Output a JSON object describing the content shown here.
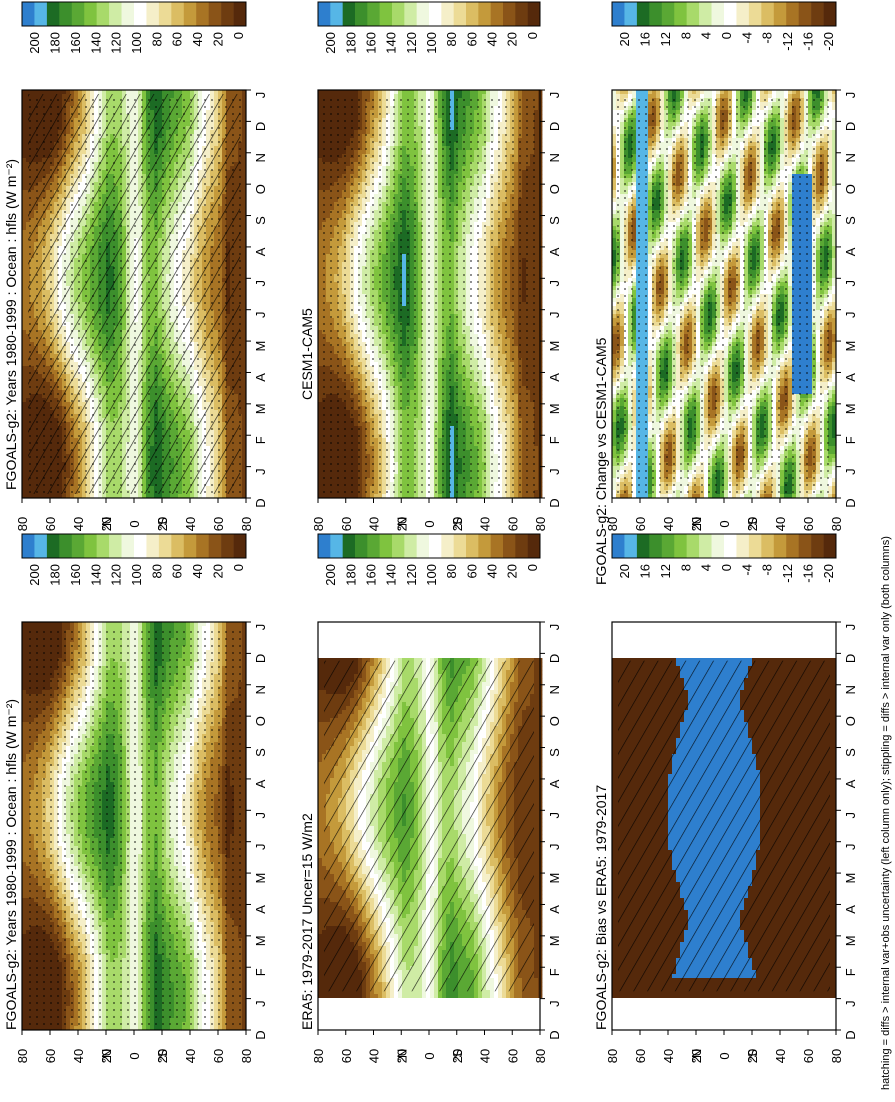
{
  "footnote": "hatching = diffs > internal var+obs uncertainty (left column only); stippling = diffs > internal var only (both columns)",
  "chart_data": [
    {
      "id": "p_fgoals_ocean",
      "type": "heatmap",
      "title": "FGOALS-g2: Years 1980-1999 : Ocean : hfls (W m⁻²)",
      "x_ticks": [
        "D",
        "J",
        "F",
        "M",
        "A",
        "M",
        "J",
        "J",
        "A",
        "S",
        "O",
        "N",
        "D",
        "J"
      ],
      "y_ticks": [
        "80",
        "60",
        "40",
        "20",
        "0",
        "20",
        "40",
        "60",
        "80"
      ],
      "y_hemis": [
        "°N",
        "°S"
      ],
      "colorbar": {
        "labels": [
          "200",
          "180",
          "160",
          "140",
          "120",
          "100",
          "80",
          "60",
          "40",
          "20",
          "0"
        ],
        "colors": [
          "#2e7fce",
          "#56b6e6",
          "#1c6b24",
          "#3c8f2c",
          "#5aa834",
          "#7fc33f",
          "#a8da6a",
          "#cfeca5",
          "#eff8df",
          "#ffffff",
          "#f5efc9",
          "#ecdb96",
          "#dbbd63",
          "#c49a3b",
          "#a87424",
          "#8a5418",
          "#6e3c10",
          "#55290b"
        ]
      },
      "pattern": "hatch-both",
      "zonal": [
        [
          -90,
          4
        ],
        [
          -75,
          4
        ],
        [
          -70,
          38
        ],
        [
          -60,
          60
        ],
        [
          -50,
          88
        ],
        [
          -45,
          110
        ],
        [
          -35,
          126
        ],
        [
          -25,
          148
        ],
        [
          -18,
          170
        ],
        [
          -10,
          152
        ],
        [
          -4,
          110
        ],
        [
          0,
          96
        ],
        [
          5,
          120
        ],
        [
          12,
          150
        ],
        [
          20,
          160
        ],
        [
          30,
          130
        ],
        [
          40,
          96
        ],
        [
          50,
          70
        ],
        [
          60,
          36
        ],
        [
          70,
          12
        ],
        [
          80,
          4
        ],
        [
          90,
          4
        ]
      ],
      "seasonal": [
        [
          -90,
          0
        ],
        [
          -60,
          12
        ],
        [
          -40,
          16
        ],
        [
          -20,
          12
        ],
        [
          0,
          0
        ],
        [
          20,
          -12
        ],
        [
          40,
          -22
        ],
        [
          60,
          -26
        ],
        [
          90,
          -10
        ]
      ],
      "x_span": [
        0.0,
        1.0
      ]
    },
    {
      "id": "p_fgoals_obs",
      "type": "heatmap",
      "title": "FGOALS-g2: Years 1980-1999 : Ocean : hfls (W m⁻²)",
      "x_ticks": [
        "D",
        "J",
        "F",
        "M",
        "A",
        "M",
        "J",
        "J",
        "A",
        "S",
        "O",
        "N",
        "D",
        "J"
      ],
      "y_ticks": [
        "80",
        "60",
        "40",
        "20",
        "0",
        "20",
        "40",
        "60",
        "80"
      ],
      "y_hemis": [
        "°N",
        "°S"
      ],
      "colorbar": {
        "labels": [
          "200",
          "180",
          "160",
          "140",
          "120",
          "100",
          "80",
          "60",
          "40",
          "20",
          "0"
        ],
        "colors": [
          "#2e7fce",
          "#56b6e6",
          "#1c6b24",
          "#3c8f2c",
          "#5aa834",
          "#7fc33f",
          "#a8da6a",
          "#cfeca5",
          "#eff8df",
          "#ffffff",
          "#f5efc9",
          "#ecdb96",
          "#dbbd63",
          "#c49a3b",
          "#a87424",
          "#8a5418",
          "#6e3c10",
          "#55290b"
        ]
      },
      "pattern": "stipple",
      "zonal": [
        [
          -90,
          4
        ],
        [
          -75,
          4
        ],
        [
          -70,
          34
        ],
        [
          -60,
          58
        ],
        [
          -50,
          86
        ],
        [
          -45,
          112
        ],
        [
          -35,
          130
        ],
        [
          -25,
          150
        ],
        [
          -18,
          172
        ],
        [
          -10,
          150
        ],
        [
          -4,
          112
        ],
        [
          0,
          98
        ],
        [
          5,
          122
        ],
        [
          12,
          152
        ],
        [
          20,
          162
        ],
        [
          30,
          132
        ],
        [
          40,
          100
        ],
        [
          50,
          72
        ],
        [
          60,
          38
        ],
        [
          70,
          12
        ],
        [
          80,
          4
        ],
        [
          90,
          4
        ]
      ],
      "seasonal": [
        [
          -90,
          0
        ],
        [
          -60,
          14
        ],
        [
          -40,
          16
        ],
        [
          -20,
          10
        ],
        [
          0,
          0
        ],
        [
          20,
          -12
        ],
        [
          40,
          -24
        ],
        [
          60,
          -26
        ],
        [
          90,
          -10
        ]
      ],
      "x_span": [
        0.0,
        1.0
      ]
    },
    {
      "id": "p_era5",
      "type": "heatmap",
      "title": "ERA5: 1979-2017 Uncer=15 W/m2",
      "x_ticks": [
        "D",
        "J",
        "F",
        "M",
        "A",
        "M",
        "J",
        "J",
        "A",
        "S",
        "O",
        "N",
        "D",
        "J"
      ],
      "y_ticks": [
        "80",
        "60",
        "40",
        "20",
        "0",
        "20",
        "40",
        "60",
        "80"
      ],
      "y_hemis": [
        "°N",
        "°S"
      ],
      "colorbar": {
        "labels": [
          "200",
          "180",
          "160",
          "140",
          "120",
          "100",
          "80",
          "60",
          "40",
          "20",
          "0"
        ],
        "colors": [
          "#2e7fce",
          "#56b6e6",
          "#1c6b24",
          "#3c8f2c",
          "#5aa834",
          "#7fc33f",
          "#a8da6a",
          "#cfeca5",
          "#eff8df",
          "#ffffff",
          "#f5efc9",
          "#ecdb96",
          "#dbbd63",
          "#c49a3b",
          "#a87424",
          "#8a5418",
          "#6e3c10",
          "#55290b"
        ]
      },
      "pattern": "hatch",
      "zonal": [
        [
          -90,
          4
        ],
        [
          -75,
          6
        ],
        [
          -65,
          30
        ],
        [
          -55,
          62
        ],
        [
          -45,
          96
        ],
        [
          -35,
          128
        ],
        [
          -25,
          142
        ],
        [
          -18,
          156
        ],
        [
          -10,
          140
        ],
        [
          -4,
          104
        ],
        [
          0,
          96
        ],
        [
          5,
          118
        ],
        [
          12,
          138
        ],
        [
          20,
          146
        ],
        [
          30,
          118
        ],
        [
          40,
          88
        ],
        [
          50,
          56
        ],
        [
          60,
          26
        ],
        [
          70,
          8
        ],
        [
          80,
          4
        ],
        [
          90,
          4
        ]
      ],
      "seasonal": [
        [
          -90,
          0
        ],
        [
          -60,
          10
        ],
        [
          -40,
          14
        ],
        [
          -20,
          10
        ],
        [
          0,
          0
        ],
        [
          20,
          -10
        ],
        [
          40,
          -20
        ],
        [
          60,
          -24
        ],
        [
          90,
          -10
        ]
      ],
      "x_span": [
        0.085,
        0.915
      ]
    },
    {
      "id": "p_cesm",
      "type": "heatmap",
      "title": "CESM1-CAM5",
      "x_ticks": [
        "D",
        "J",
        "F",
        "M",
        "A",
        "M",
        "J",
        "J",
        "A",
        "S",
        "O",
        "N",
        "D",
        "J"
      ],
      "y_ticks": [
        "80",
        "60",
        "40",
        "20",
        "0",
        "20",
        "40",
        "60",
        "80"
      ],
      "y_hemis": [
        "°N",
        "°S"
      ],
      "colorbar": {
        "labels": [
          "200",
          "180",
          "160",
          "140",
          "120",
          "100",
          "80",
          "60",
          "40",
          "20",
          "0"
        ],
        "colors": [
          "#2e7fce",
          "#56b6e6",
          "#1c6b24",
          "#3c8f2c",
          "#5aa834",
          "#7fc33f",
          "#a8da6a",
          "#cfeca5",
          "#eff8df",
          "#ffffff",
          "#f5efc9",
          "#ecdb96",
          "#dbbd63",
          "#c49a3b",
          "#a87424",
          "#8a5418",
          "#6e3c10",
          "#55290b"
        ]
      },
      "pattern": "stipple",
      "zonal": [
        [
          -90,
          4
        ],
        [
          -75,
          4
        ],
        [
          -70,
          30
        ],
        [
          -60,
          56
        ],
        [
          -50,
          84
        ],
        [
          -45,
          106
        ],
        [
          -35,
          128
        ],
        [
          -25,
          152
        ],
        [
          -18,
          176
        ],
        [
          -10,
          150
        ],
        [
          -4,
          110
        ],
        [
          0,
          96
        ],
        [
          5,
          124
        ],
        [
          12,
          156
        ],
        [
          20,
          170
        ],
        [
          30,
          136
        ],
        [
          40,
          100
        ],
        [
          50,
          70
        ],
        [
          60,
          36
        ],
        [
          70,
          12
        ],
        [
          80,
          4
        ],
        [
          90,
          4
        ]
      ],
      "seasonal": [
        [
          -90,
          0
        ],
        [
          -60,
          12
        ],
        [
          -40,
          16
        ],
        [
          -20,
          12
        ],
        [
          0,
          0
        ],
        [
          20,
          -12
        ],
        [
          40,
          -22
        ],
        [
          60,
          -26
        ],
        [
          90,
          -10
        ]
      ],
      "x_span": [
        0.0,
        1.0
      ]
    },
    {
      "id": "p_bias",
      "type": "heatmap",
      "title": "FGOALS-g2: Bias vs ERA5: 1979-2017",
      "x_ticks": [
        "D",
        "J",
        "F",
        "M",
        "A",
        "M",
        "J",
        "J",
        "A",
        "S",
        "O",
        "N",
        "D",
        "J"
      ],
      "y_ticks": [
        "80",
        "60",
        "40",
        "20",
        "0",
        "20",
        "40",
        "60",
        "80"
      ],
      "y_hemis": [
        "°N",
        "°S"
      ],
      "colorbar": {
        "labels": [
          "20",
          "16",
          "12",
          "8",
          "4",
          "0",
          "-4",
          "-8",
          "-12",
          "-16",
          "-20"
        ],
        "colors": [
          "#2e7fce",
          "#56b6e6",
          "#1c6b24",
          "#3c8f2c",
          "#5aa834",
          "#7fc33f",
          "#a8da6a",
          "#cfeca5",
          "#eff8df",
          "#ffffff",
          "#f5efc9",
          "#ecdb96",
          "#dbbd63",
          "#c49a3b",
          "#a87424",
          "#8a5418",
          "#6e3c10",
          "#55290b"
        ]
      },
      "pattern": "hatch",
      "mode": "bias",
      "x_span": [
        0.085,
        0.915
      ]
    },
    {
      "id": "p_change",
      "type": "heatmap",
      "title": "FGOALS-g2: Change vs CESM1-CAM5",
      "x_ticks": [
        "D",
        "J",
        "F",
        "M",
        "A",
        "M",
        "J",
        "J",
        "A",
        "S",
        "O",
        "N",
        "D",
        "J"
      ],
      "y_ticks": [
        "80",
        "60",
        "40",
        "20",
        "0",
        "20",
        "40",
        "60",
        "80"
      ],
      "y_hemis": [
        "°N",
        "°S"
      ],
      "colorbar": {
        "labels": [
          "20",
          "16",
          "12",
          "8",
          "4",
          "0",
          "-4",
          "-8",
          "-12",
          "-16",
          "-20"
        ],
        "colors": [
          "#2e7fce",
          "#56b6e6",
          "#1c6b24",
          "#3c8f2c",
          "#5aa834",
          "#7fc33f",
          "#a8da6a",
          "#cfeca5",
          "#eff8df",
          "#ffffff",
          "#f5efc9",
          "#ecdb96",
          "#dbbd63",
          "#c49a3b",
          "#a87424",
          "#8a5418",
          "#6e3c10",
          "#55290b"
        ]
      },
      "pattern": "stipple",
      "mode": "change",
      "x_span": [
        0.0,
        1.0
      ]
    }
  ]
}
